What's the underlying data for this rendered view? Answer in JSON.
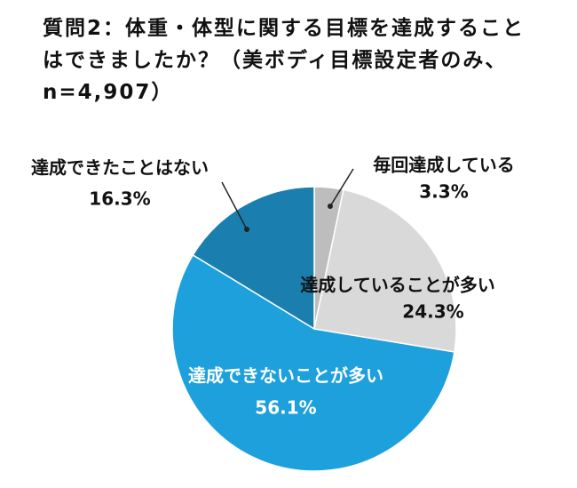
{
  "chart_data": {
    "type": "pie",
    "title": "質問2：体重・体型に関する目標を達成することはできましたか？（美ボディ目標設定者のみ、n=4,907）",
    "categories": [
      "毎回達成している",
      "達成していることが多い",
      "達成できないことが多い",
      "達成できたことはない"
    ],
    "values": [
      3.3,
      24.3,
      56.1,
      16.3
    ],
    "value_labels": [
      "3.3%",
      "24.3%",
      "56.1%",
      "16.3%"
    ],
    "colors": [
      "#bdbdbd",
      "#d9d9d9",
      "#1ea0dc",
      "#1a7fae"
    ]
  }
}
